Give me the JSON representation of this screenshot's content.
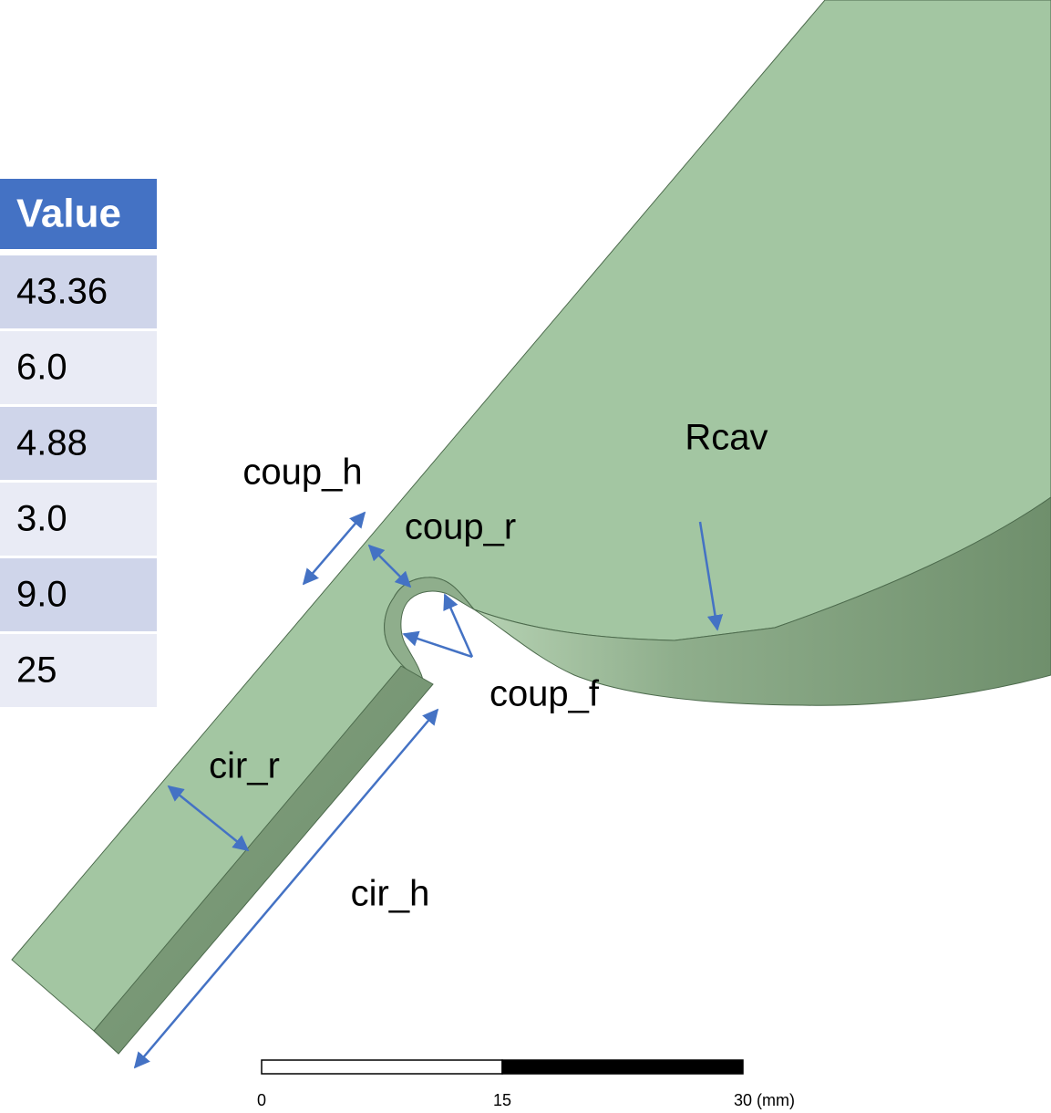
{
  "table": {
    "header": "Value",
    "rows": [
      "43.36",
      "6.0",
      "4.88",
      "3.0",
      "9.0",
      "25"
    ]
  },
  "labels": {
    "rcav": "Rcav",
    "coup_h": "coup_h",
    "coup_r": "coup_r",
    "coup_f": "coup_f",
    "cir_r": "cir_r",
    "cir_h": "cir_h"
  },
  "scale_bar": {
    "labels": [
      "0",
      "15",
      "30 (mm)"
    ]
  }
}
